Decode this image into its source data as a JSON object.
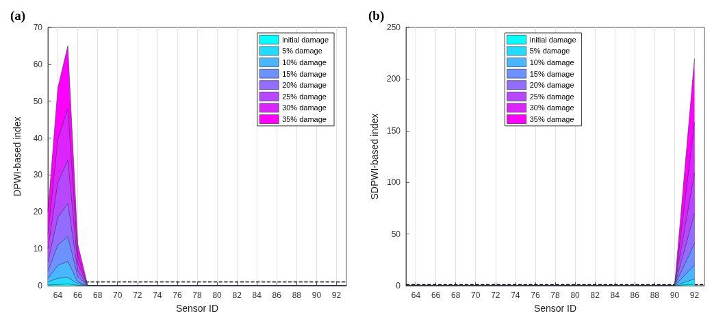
{
  "chart_data": [
    {
      "type": "area",
      "title": "(a)",
      "xlabel": "Sensor ID",
      "ylabel": "DPWI-based index",
      "xlim": [
        63,
        93
      ],
      "xticks": [
        64,
        66,
        68,
        70,
        72,
        74,
        76,
        78,
        80,
        82,
        84,
        86,
        88,
        90,
        92
      ],
      "ylim": [
        0,
        70
      ],
      "yticks": [
        0,
        10,
        20,
        30,
        40,
        50,
        60,
        70
      ],
      "grid": "x",
      "legend": "top right",
      "marker": "none",
      "x": [
        63,
        64,
        65,
        66,
        67,
        93
      ],
      "series": [
        {
          "name": "initial damage",
          "color": "#00ffff",
          "values": [
            0.2,
            0.3,
            0.5,
            0.1,
            0,
            0
          ]
        },
        {
          "name": "5% damage",
          "color": "#24dbff",
          "values": [
            1,
            2,
            2.2,
            0.5,
            0,
            0
          ]
        },
        {
          "name": "10% damage",
          "color": "#49b6ff",
          "values": [
            2,
            5.5,
            6.6,
            1,
            0,
            0
          ]
        },
        {
          "name": "15% damage",
          "color": "#6d92ff",
          "values": [
            4,
            11,
            13.3,
            2.5,
            0,
            0
          ]
        },
        {
          "name": "20% damage",
          "color": "#926dff",
          "values": [
            6.5,
            18.5,
            22.3,
            4,
            0,
            0
          ]
        },
        {
          "name": "25% damage",
          "color": "#b649ff",
          "values": [
            10,
            28,
            34,
            6,
            0,
            0
          ]
        },
        {
          "name": "30% damage",
          "color": "#db24ff",
          "values": [
            14,
            39.6,
            48,
            8,
            0,
            0
          ]
        },
        {
          "name": "35% damage",
          "color": "#ff00ff",
          "values": [
            20,
            53.7,
            65,
            11.3,
            0,
            0
          ]
        }
      ],
      "ref_lines": [
        {
          "axis": "y",
          "value": 1,
          "line_style": "dashed",
          "color": "#000000"
        }
      ]
    },
    {
      "type": "area",
      "title": "(b)",
      "xlabel": "Sensor ID",
      "ylabel": "SDPWI-based index",
      "xlim": [
        63,
        93
      ],
      "xticks": [
        64,
        66,
        68,
        70,
        72,
        74,
        76,
        78,
        80,
        82,
        84,
        86,
        88,
        90,
        92
      ],
      "ylim": [
        0,
        250
      ],
      "yticks": [
        0,
        50,
        100,
        150,
        200,
        250
      ],
      "grid": "x",
      "legend": "top",
      "marker": "none",
      "x": [
        63,
        90,
        92
      ],
      "series": [
        {
          "name": "initial damage",
          "color": "#00ffff",
          "values": [
            0,
            0,
            1.5
          ]
        },
        {
          "name": "5% damage",
          "color": "#24dbff",
          "values": [
            0,
            0,
            6.5
          ]
        },
        {
          "name": "10% damage",
          "color": "#49b6ff",
          "values": [
            0,
            0,
            20
          ]
        },
        {
          "name": "15% damage",
          "color": "#6d92ff",
          "values": [
            0,
            0,
            41
          ]
        },
        {
          "name": "20% damage",
          "color": "#926dff",
          "values": [
            0,
            0,
            70
          ]
        },
        {
          "name": "25% damage",
          "color": "#b649ff",
          "values": [
            0,
            0,
            109
          ]
        },
        {
          "name": "30% damage",
          "color": "#db24ff",
          "values": [
            0,
            0,
            158
          ]
        },
        {
          "name": "35% damage",
          "color": "#ff00ff",
          "values": [
            0,
            0,
            220
          ]
        }
      ],
      "ref_lines": [
        {
          "axis": "y",
          "value": 1,
          "line_style": "dashed",
          "color": "#000000"
        }
      ]
    }
  ]
}
